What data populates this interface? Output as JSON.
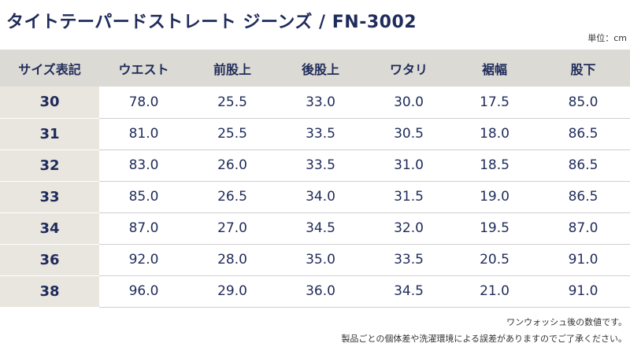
{
  "title": "タイトテーパードストレート ジーンズ / FN-3002",
  "unit": "単位：cm",
  "table": {
    "headers": [
      "サイズ表記",
      "ウエスト",
      "前股上",
      "後股上",
      "ワタリ",
      "裾幅",
      "股下"
    ],
    "rows": [
      [
        "30",
        "78.0",
        "25.5",
        "33.0",
        "30.0",
        "17.5",
        "85.0"
      ],
      [
        "31",
        "81.0",
        "25.5",
        "33.5",
        "30.5",
        "18.0",
        "86.5"
      ],
      [
        "32",
        "83.0",
        "26.0",
        "33.5",
        "31.0",
        "18.5",
        "86.5"
      ],
      [
        "33",
        "85.0",
        "26.5",
        "34.0",
        "31.5",
        "19.0",
        "86.5"
      ],
      [
        "34",
        "87.0",
        "27.0",
        "34.5",
        "32.0",
        "19.5",
        "87.0"
      ],
      [
        "36",
        "92.0",
        "28.0",
        "35.0",
        "33.5",
        "20.5",
        "91.0"
      ],
      [
        "38",
        "96.0",
        "29.0",
        "36.0",
        "34.5",
        "21.0",
        "91.0"
      ]
    ]
  },
  "notes": {
    "line1": "ワンウォッシュ後の数値です。",
    "line2": "製品ごとの個体差や洗濯環境による誤差がありますのでご了承ください。"
  }
}
